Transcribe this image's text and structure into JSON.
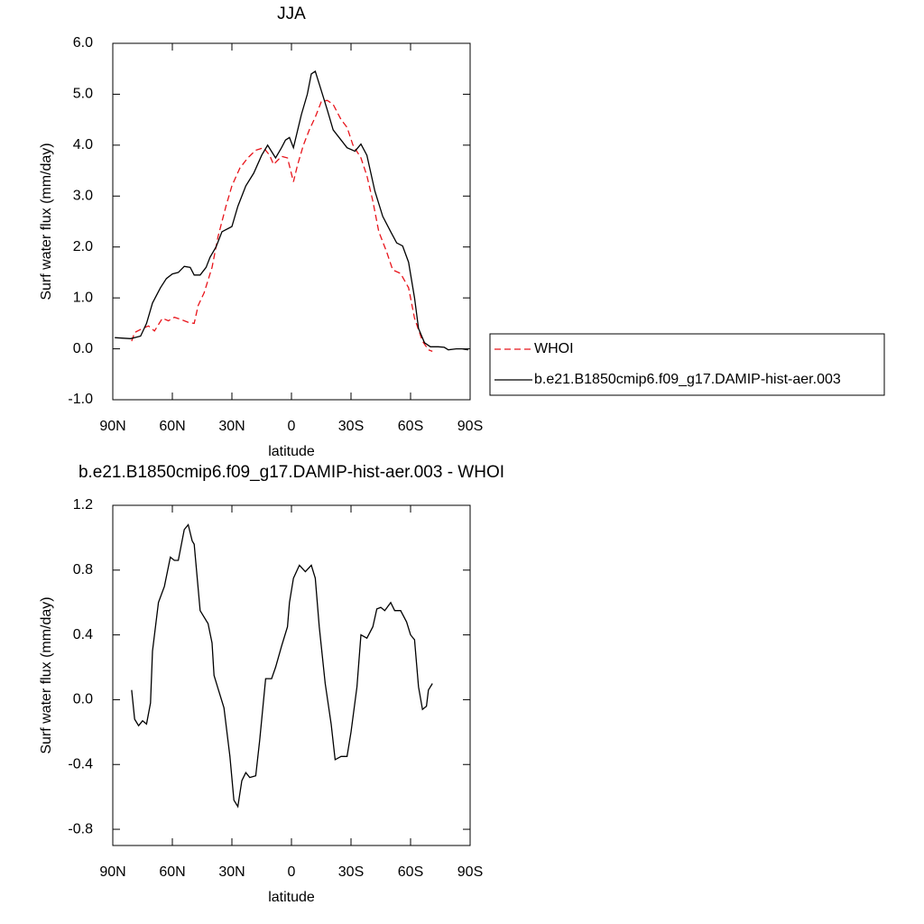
{
  "chart_data": [
    {
      "type": "line",
      "title": "JJA",
      "xlabel": "latitude",
      "ylabel": "Surf water flux (mm/day)",
      "xlim": [
        90,
        -90
      ],
      "xticks": [
        {
          "value": 90,
          "label": "90N"
        },
        {
          "value": 60,
          "label": "60N"
        },
        {
          "value": 30,
          "label": "30N"
        },
        0,
        {
          "value": -30,
          "label": "30S"
        },
        {
          "value": -60,
          "label": "60S"
        },
        {
          "value": -90,
          "label": "90S"
        }
      ],
      "ylim": [
        -1,
        6
      ],
      "yticks": [
        {
          "value": 6,
          "label": "6.0"
        },
        {
          "value": 5,
          "label": "5.0"
        },
        {
          "value": 4,
          "label": "4.0"
        },
        {
          "value": 3,
          "label": "3.0"
        },
        {
          "value": 2,
          "label": "2.0"
        },
        {
          "value": 1,
          "label": "1.0"
        },
        {
          "value": 0,
          "label": "0.0"
        },
        {
          "value": -1,
          "label": "-1.0"
        }
      ],
      "legend": "right",
      "series": [
        {
          "name": "WHOI",
          "color": "#e8141b",
          "dash": true,
          "x": [
            80.5,
            79,
            75,
            72,
            69,
            65,
            62,
            59,
            56,
            52,
            49,
            47,
            44,
            40,
            37,
            33,
            30,
            26,
            22,
            18,
            14,
            11,
            9,
            5,
            2,
            -1,
            -3,
            -6,
            -9,
            -12,
            -15,
            -18,
            -21,
            -25,
            -28,
            -31,
            -35,
            -38,
            -41,
            -44,
            -48,
            -51,
            -55,
            -59,
            -62,
            -66,
            -69,
            -71
          ],
          "values": [
            0.15,
            0.32,
            0.4,
            0.45,
            0.35,
            0.6,
            0.55,
            0.62,
            0.58,
            0.52,
            0.5,
            0.85,
            1.1,
            1.6,
            2.2,
            2.8,
            3.2,
            3.55,
            3.75,
            3.9,
            3.95,
            3.8,
            3.62,
            3.78,
            3.75,
            3.28,
            3.6,
            4.0,
            4.3,
            4.55,
            4.85,
            4.88,
            4.8,
            4.5,
            4.35,
            4.0,
            3.75,
            3.4,
            2.9,
            2.3,
            1.9,
            1.55,
            1.48,
            1.2,
            0.6,
            0.15,
            -0.02,
            -0.05
          ]
        },
        {
          "name": "b.e21.B1850cmip6.f09_g17.DAMIP-hist-aer.003",
          "color": "#000000",
          "dash": false,
          "x": [
            89,
            81,
            76,
            73,
            70,
            66,
            63,
            60,
            57,
            54,
            51,
            49,
            46,
            43,
            41,
            38,
            35,
            30,
            27,
            23,
            19,
            15,
            12,
            8,
            5,
            3,
            1,
            -1,
            -5,
            -8,
            -10,
            -12,
            -14,
            -18,
            -21,
            -25,
            -28,
            -32,
            -35,
            -38,
            -42,
            -46,
            -50,
            -53,
            -56,
            -59,
            -62,
            -64,
            -67,
            -70,
            -74,
            -77,
            -79,
            -83,
            -86,
            -89
          ],
          "values": [
            0.22,
            0.2,
            0.25,
            0.5,
            0.9,
            1.2,
            1.38,
            1.47,
            1.5,
            1.62,
            1.6,
            1.45,
            1.45,
            1.6,
            1.8,
            2.0,
            2.3,
            2.4,
            2.8,
            3.2,
            3.45,
            3.8,
            4.0,
            3.75,
            3.95,
            4.1,
            4.15,
            3.95,
            4.6,
            5.0,
            5.4,
            5.45,
            5.2,
            4.7,
            4.3,
            4.1,
            3.95,
            3.88,
            4.02,
            3.8,
            3.1,
            2.6,
            2.3,
            2.08,
            2.02,
            1.7,
            1.0,
            0.4,
            0.12,
            0.04,
            0.04,
            0.03,
            -0.02,
            0.0,
            0.0,
            -0.02
          ]
        }
      ]
    },
    {
      "type": "line",
      "title": "b.e21.B1850cmip6.f09_g17.DAMIP-hist-aer.003 - WHOI",
      "xlabel": "latitude",
      "ylabel": "Surf water flux (mm/day)",
      "xlim": [
        90,
        -90
      ],
      "xticks": [
        {
          "value": 90,
          "label": "90N"
        },
        {
          "value": 60,
          "label": "60N"
        },
        {
          "value": 30,
          "label": "30N"
        },
        0,
        {
          "value": -30,
          "label": "30S"
        },
        {
          "value": -60,
          "label": "60S"
        },
        {
          "value": -90,
          "label": "90S"
        }
      ],
      "ylim": [
        -0.9,
        1.2
      ],
      "yticks": [
        1.2,
        0.8,
        0.4,
        {
          "value": 0,
          "label": "0.0"
        },
        -0.4,
        -0.8
      ],
      "color": "#000000",
      "x": [
        80.5,
        79,
        77,
        75,
        73,
        71,
        70,
        67,
        64,
        61,
        59,
        57,
        54,
        52,
        50,
        49,
        46,
        42,
        40,
        39,
        37,
        34,
        31,
        29,
        27,
        25,
        23,
        21,
        18,
        16,
        13,
        10,
        8,
        5,
        2,
        1,
        -1,
        -4,
        -7,
        -10,
        -12,
        -14,
        -17,
        -20,
        -22,
        -25,
        -28,
        -30,
        -33,
        -35,
        -38,
        -41,
        -43,
        -45,
        -47,
        -50,
        -52,
        -55,
        -58,
        -60,
        -62,
        -64,
        -66,
        -68,
        -69,
        -71
      ],
      "values": [
        0.06,
        -0.12,
        -0.16,
        -0.13,
        -0.15,
        -0.02,
        0.3,
        0.6,
        0.7,
        0.88,
        0.86,
        0.86,
        1.05,
        1.08,
        0.98,
        0.96,
        0.55,
        0.47,
        0.35,
        0.15,
        0.07,
        -0.05,
        -0.35,
        -0.62,
        -0.66,
        -0.5,
        -0.45,
        -0.48,
        -0.47,
        -0.25,
        0.13,
        0.13,
        0.2,
        0.33,
        0.45,
        0.6,
        0.75,
        0.83,
        0.79,
        0.83,
        0.75,
        0.45,
        0.1,
        -0.15,
        -0.37,
        -0.35,
        -0.35,
        -0.2,
        0.08,
        0.4,
        0.38,
        0.45,
        0.56,
        0.57,
        0.55,
        0.6,
        0.55,
        0.55,
        0.48,
        0.4,
        0.37,
        0.08,
        -0.06,
        -0.04,
        0.06,
        0.1
      ]
    }
  ]
}
